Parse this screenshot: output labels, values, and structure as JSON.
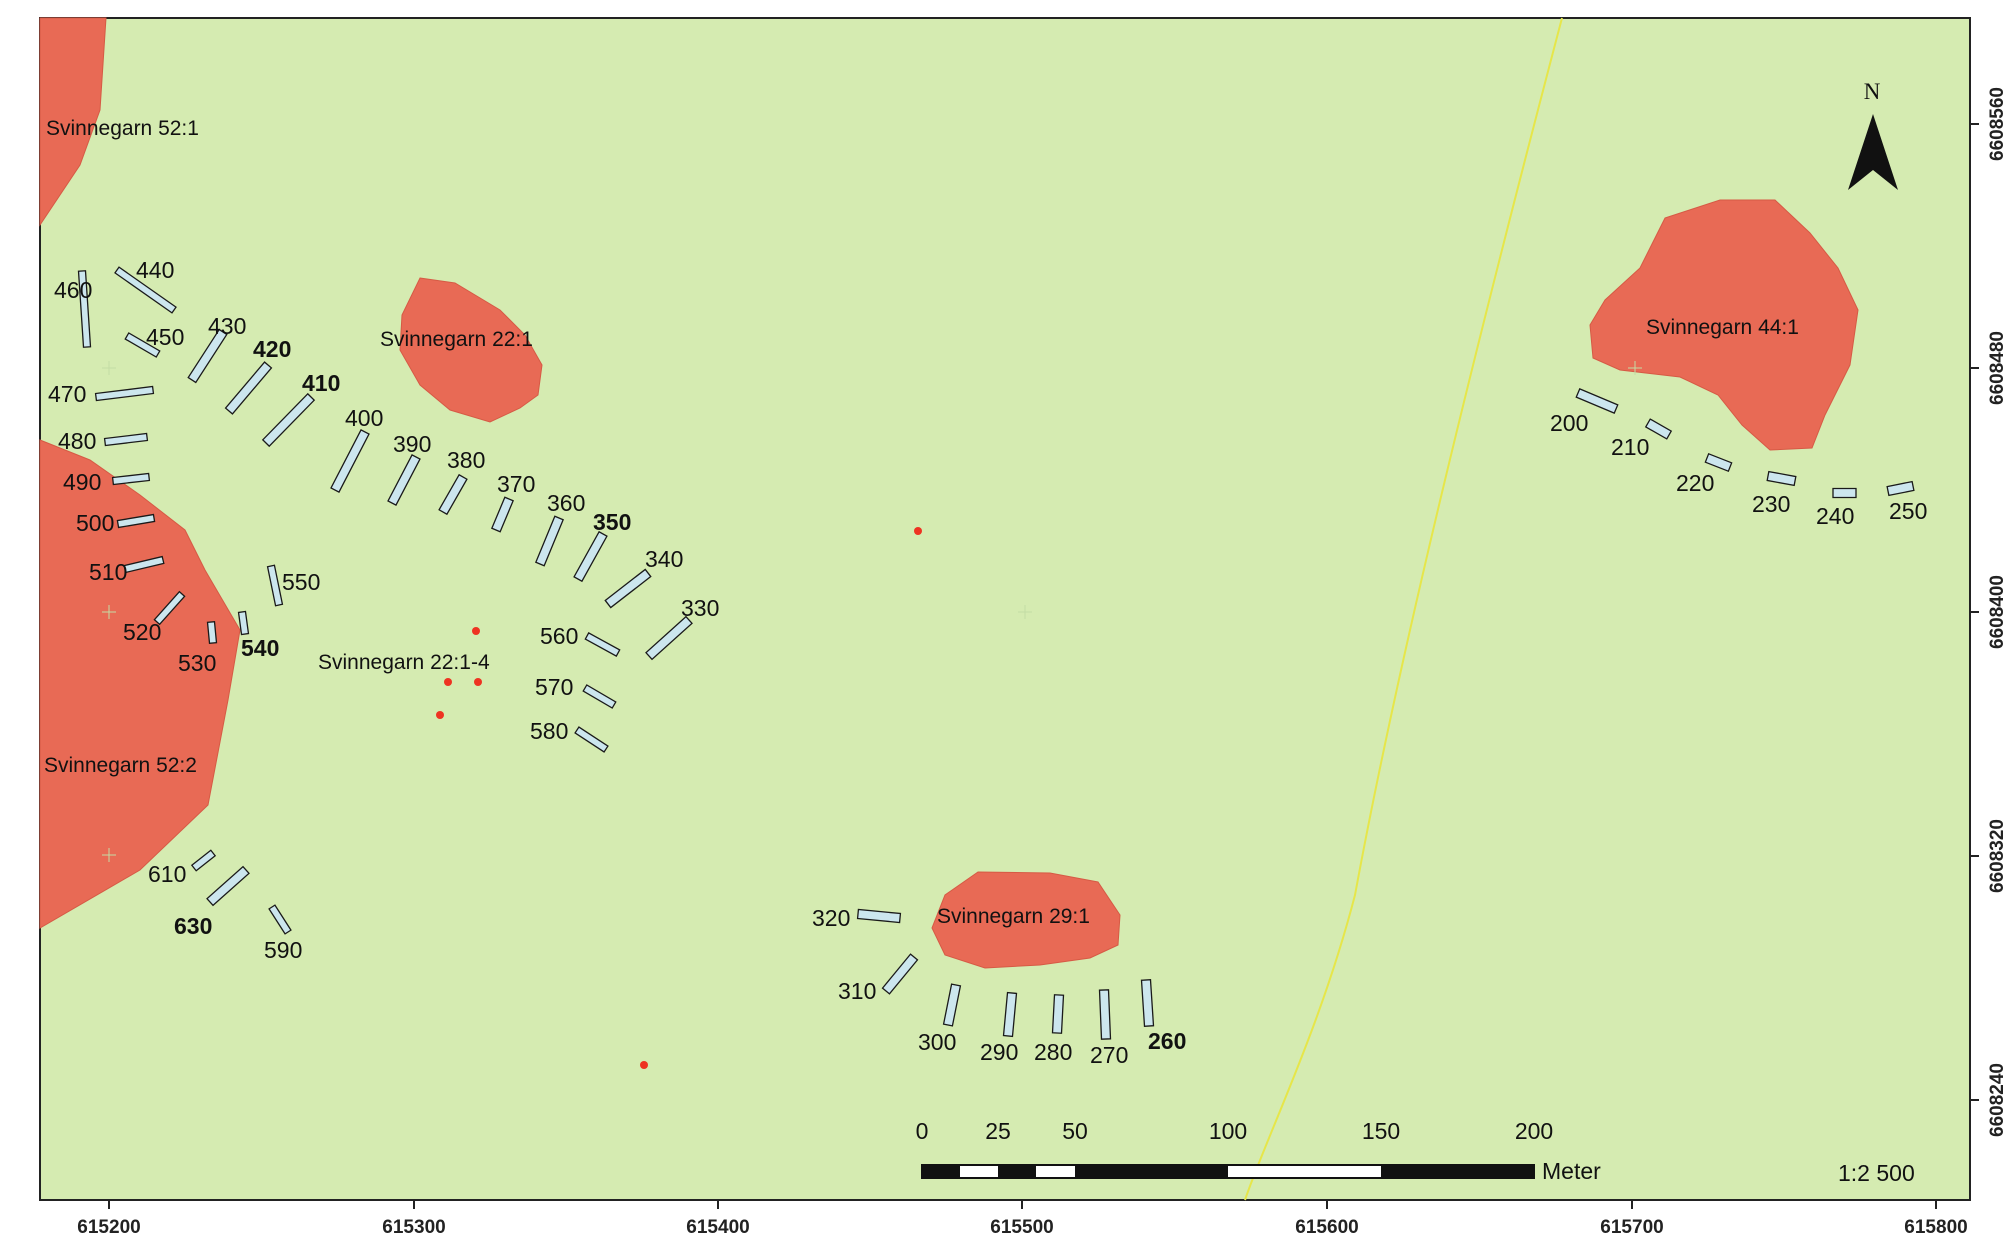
{
  "map": {
    "background_color": "#d5ebb1",
    "site_color": "#e86a55",
    "trench_color": "#cce6ee",
    "find_color": "#ee3322"
  },
  "axes": {
    "x_ticks": [
      "615200",
      "615300",
      "615400",
      "615500",
      "615600",
      "615700",
      "615800"
    ],
    "y_ticks": [
      "6608560",
      "6608480",
      "6608400",
      "6608320",
      "6608240"
    ]
  },
  "sites": [
    {
      "id": "s52-1",
      "label": "Svinnegarn 52:1"
    },
    {
      "id": "s22-1",
      "label": "Svinnegarn 22:1"
    },
    {
      "id": "s22-1-4",
      "label": "Svinnegarn 22:1-4"
    },
    {
      "id": "s52-2",
      "label": "Svinnegarn 52:2"
    },
    {
      "id": "s29-1",
      "label": "Svinnegarn 29:1"
    },
    {
      "id": "s44-1",
      "label": "Svinnegarn 44:1"
    }
  ],
  "trench_labels": {
    "t200": "200",
    "t210": "210",
    "t220": "220",
    "t230": "230",
    "t240": "240",
    "t250": "250",
    "t260": "260",
    "t270": "270",
    "t280": "280",
    "t290": "290",
    "t300": "300",
    "t310": "310",
    "t320": "320",
    "t330": "330",
    "t340": "340",
    "t350": "350",
    "t360": "360",
    "t370": "370",
    "t380": "380",
    "t390": "390",
    "t400": "400",
    "t410": "410",
    "t420": "420",
    "t430": "430",
    "t440": "440",
    "t450": "450",
    "t460": "460",
    "t470": "470",
    "t480": "480",
    "t490": "490",
    "t500": "500",
    "t510": "510",
    "t520": "520",
    "t530": "530",
    "t540": "540",
    "t550": "550",
    "t560": "560",
    "t570": "570",
    "t580": "580",
    "t590": "590",
    "t610": "610",
    "t630": "630"
  },
  "north_arrow": {
    "label": "N",
    "icon": "north-arrow-icon"
  },
  "scale_bar": {
    "ticks": [
      "0",
      "25",
      "50",
      "100",
      "150",
      "200"
    ],
    "unit": "Meter",
    "ratio": "1:2 500"
  }
}
